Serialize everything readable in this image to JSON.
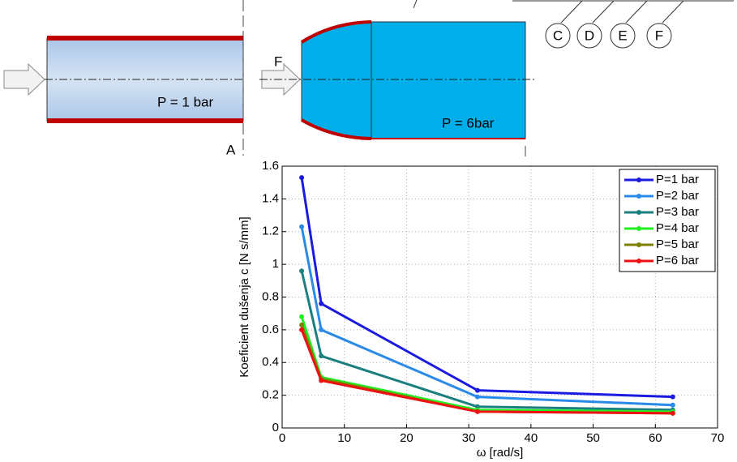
{
  "diagram": {
    "left_pressure": "P =  1 bar",
    "right_pressure": "P =  6bar",
    "section_label": "A",
    "force_label": "F",
    "circles": [
      "C",
      "D",
      "E",
      "F"
    ]
  },
  "chart_data": {
    "type": "line",
    "xlabel": "ω [rad/s]",
    "ylabel": "Koeficient dušenja c [N s/mm]",
    "x": [
      3.14,
      6.28,
      31.4,
      62.8
    ],
    "series": [
      {
        "name": "P=1 bar",
        "color": "#1a1ae0",
        "values": [
          1.53,
          0.76,
          0.23,
          0.19
        ]
      },
      {
        "name": "P=2 bar",
        "color": "#2a8ae8",
        "values": [
          1.23,
          0.6,
          0.19,
          0.14
        ]
      },
      {
        "name": "P=3 bar",
        "color": "#1a7f7f",
        "values": [
          0.96,
          0.44,
          0.13,
          0.11
        ]
      },
      {
        "name": "P=4 bar",
        "color": "#22ee22",
        "values": [
          0.68,
          0.31,
          0.11,
          0.1
        ]
      },
      {
        "name": "P=5 bar",
        "color": "#7f7f00",
        "values": [
          0.63,
          0.3,
          0.1,
          0.09
        ]
      },
      {
        "name": "P=6 bar",
        "color": "#ee1111",
        "values": [
          0.6,
          0.29,
          0.1,
          0.09
        ]
      }
    ],
    "xlim": [
      0,
      70
    ],
    "xticks": [
      0,
      10,
      20,
      30,
      40,
      50,
      60,
      70
    ],
    "ylim": [
      0,
      1.6
    ],
    "yticks": [
      0,
      0.2,
      0.4,
      0.6,
      0.8,
      1,
      1.2,
      1.4,
      1.6
    ],
    "grid": true,
    "legend": "top-right"
  }
}
